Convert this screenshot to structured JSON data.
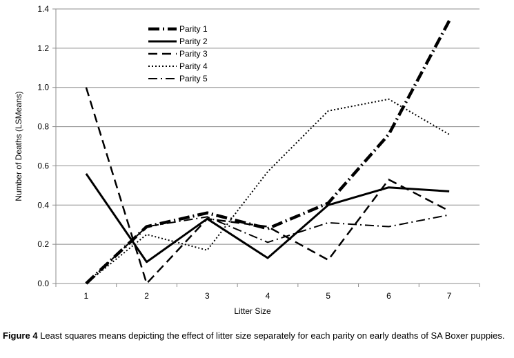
{
  "chart_data": {
    "type": "line",
    "title": "",
    "xlabel": "Litter Size",
    "ylabel": "Number of Deaths (LSMeans)",
    "x": [
      1,
      2,
      3,
      4,
      5,
      6,
      7
    ],
    "xlim": [
      0.5,
      7.5
    ],
    "ylim": [
      0,
      1.4
    ],
    "y_ticks": [
      "0.0",
      "0.2",
      "0.4",
      "0.6",
      "0.8",
      "1.0",
      "1.2",
      "1.4"
    ],
    "x_ticks": [
      "1",
      "2",
      "3",
      "4",
      "5",
      "6",
      "7"
    ],
    "grid": "horizontal",
    "legend_position": "top-left",
    "series": [
      {
        "name": "Parity 1",
        "style": "long-dash-dot",
        "stroke": 4.5,
        "color": "#000000",
        "values": [
          0.0,
          0.29,
          0.36,
          0.28,
          0.41,
          0.76,
          1.34
        ]
      },
      {
        "name": "Parity 2",
        "style": "solid",
        "stroke": 3,
        "color": "#000000",
        "values": [
          0.56,
          0.11,
          0.33,
          0.13,
          0.4,
          0.49,
          0.47
        ]
      },
      {
        "name": "Parity 3",
        "style": "dashed",
        "stroke": 2.5,
        "color": "#000000",
        "values": [
          1.0,
          0.0,
          0.33,
          0.29,
          0.12,
          0.53,
          0.37
        ]
      },
      {
        "name": "Parity 4",
        "style": "dotted",
        "stroke": 2,
        "color": "#000000",
        "values": [
          0.0,
          0.25,
          0.17,
          0.57,
          0.88,
          0.94,
          0.76
        ]
      },
      {
        "name": "Parity 5",
        "style": "dash-dot",
        "stroke": 2,
        "color": "#000000",
        "values": [
          0.0,
          0.29,
          0.34,
          0.21,
          0.31,
          0.29,
          0.35
        ]
      }
    ]
  },
  "caption": {
    "label": "Figure 4",
    "text": " Least squares means depicting the effect of litter size separately for each parity on early deaths of SA Boxer puppies."
  }
}
